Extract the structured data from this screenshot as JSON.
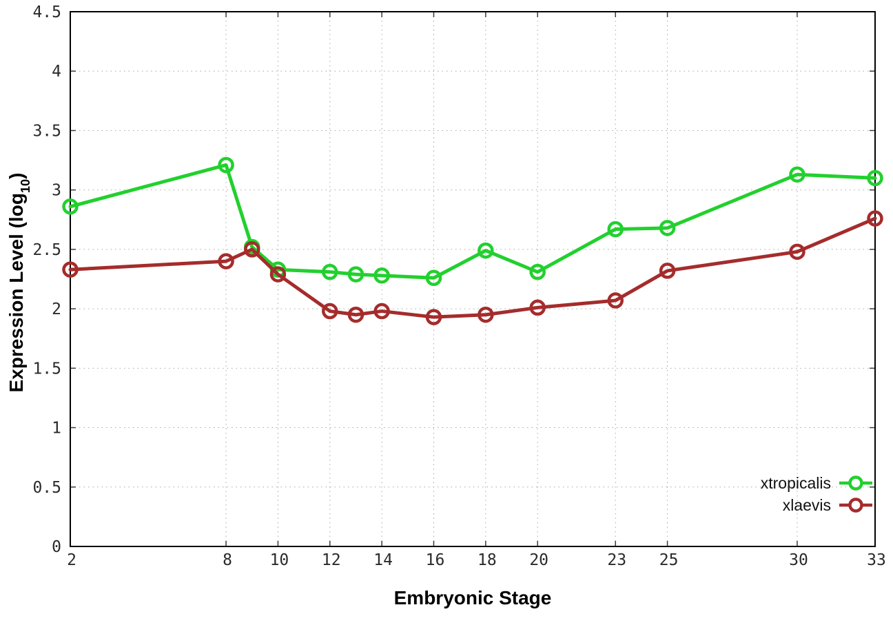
{
  "chart_data": {
    "type": "line",
    "title": "",
    "xlabel": "Embryonic Stage",
    "ylabel": {
      "pre": "Expression Level (log",
      "sub": "10",
      "post": ")"
    },
    "xlim": [
      2,
      33
    ],
    "ylim": [
      0,
      4.5
    ],
    "grid": "dotted-major-both-axes",
    "legend_position": "bottom-right",
    "background_color": "#ffffff",
    "x": [
      2,
      8,
      9,
      10,
      12,
      13,
      14,
      16,
      18,
      20,
      23,
      25,
      30,
      33
    ],
    "x_ticks": [
      {
        "v": 2,
        "label": "2"
      },
      {
        "v": 8,
        "label": "8"
      },
      {
        "v": 10,
        "label": "10"
      },
      {
        "v": 12,
        "label": "12"
      },
      {
        "v": 14,
        "label": "14"
      },
      {
        "v": 16,
        "label": "16"
      },
      {
        "v": 18,
        "label": "18"
      },
      {
        "v": 20,
        "label": "20"
      },
      {
        "v": 23,
        "label": "23"
      },
      {
        "v": 25,
        "label": "25"
      },
      {
        "v": 30,
        "label": "30"
      },
      {
        "v": 33,
        "label": "33"
      }
    ],
    "y_ticks": [
      {
        "v": 0,
        "label": "0"
      },
      {
        "v": 0.5,
        "label": "0.5"
      },
      {
        "v": 1,
        "label": "1"
      },
      {
        "v": 1.5,
        "label": "1.5"
      },
      {
        "v": 2,
        "label": "2"
      },
      {
        "v": 2.5,
        "label": "2.5"
      },
      {
        "v": 3,
        "label": "3"
      },
      {
        "v": 3.5,
        "label": "3.5"
      },
      {
        "v": 4,
        "label": "4"
      },
      {
        "v": 4.5,
        "label": "4.5"
      }
    ],
    "series": [
      {
        "name": "xtropicalis",
        "color": "#22d02e",
        "marker": "open-circle",
        "values": [
          2.86,
          3.21,
          2.52,
          2.33,
          2.31,
          2.29,
          2.28,
          2.26,
          2.49,
          2.31,
          2.67,
          2.68,
          3.13,
          3.1
        ]
      },
      {
        "name": "xlaevis",
        "color": "#a52c2c",
        "marker": "open-circle",
        "values": [
          2.33,
          2.4,
          2.5,
          2.29,
          1.98,
          1.95,
          1.98,
          1.93,
          1.95,
          2.01,
          2.07,
          2.32,
          2.48,
          2.76
        ]
      }
    ]
  }
}
